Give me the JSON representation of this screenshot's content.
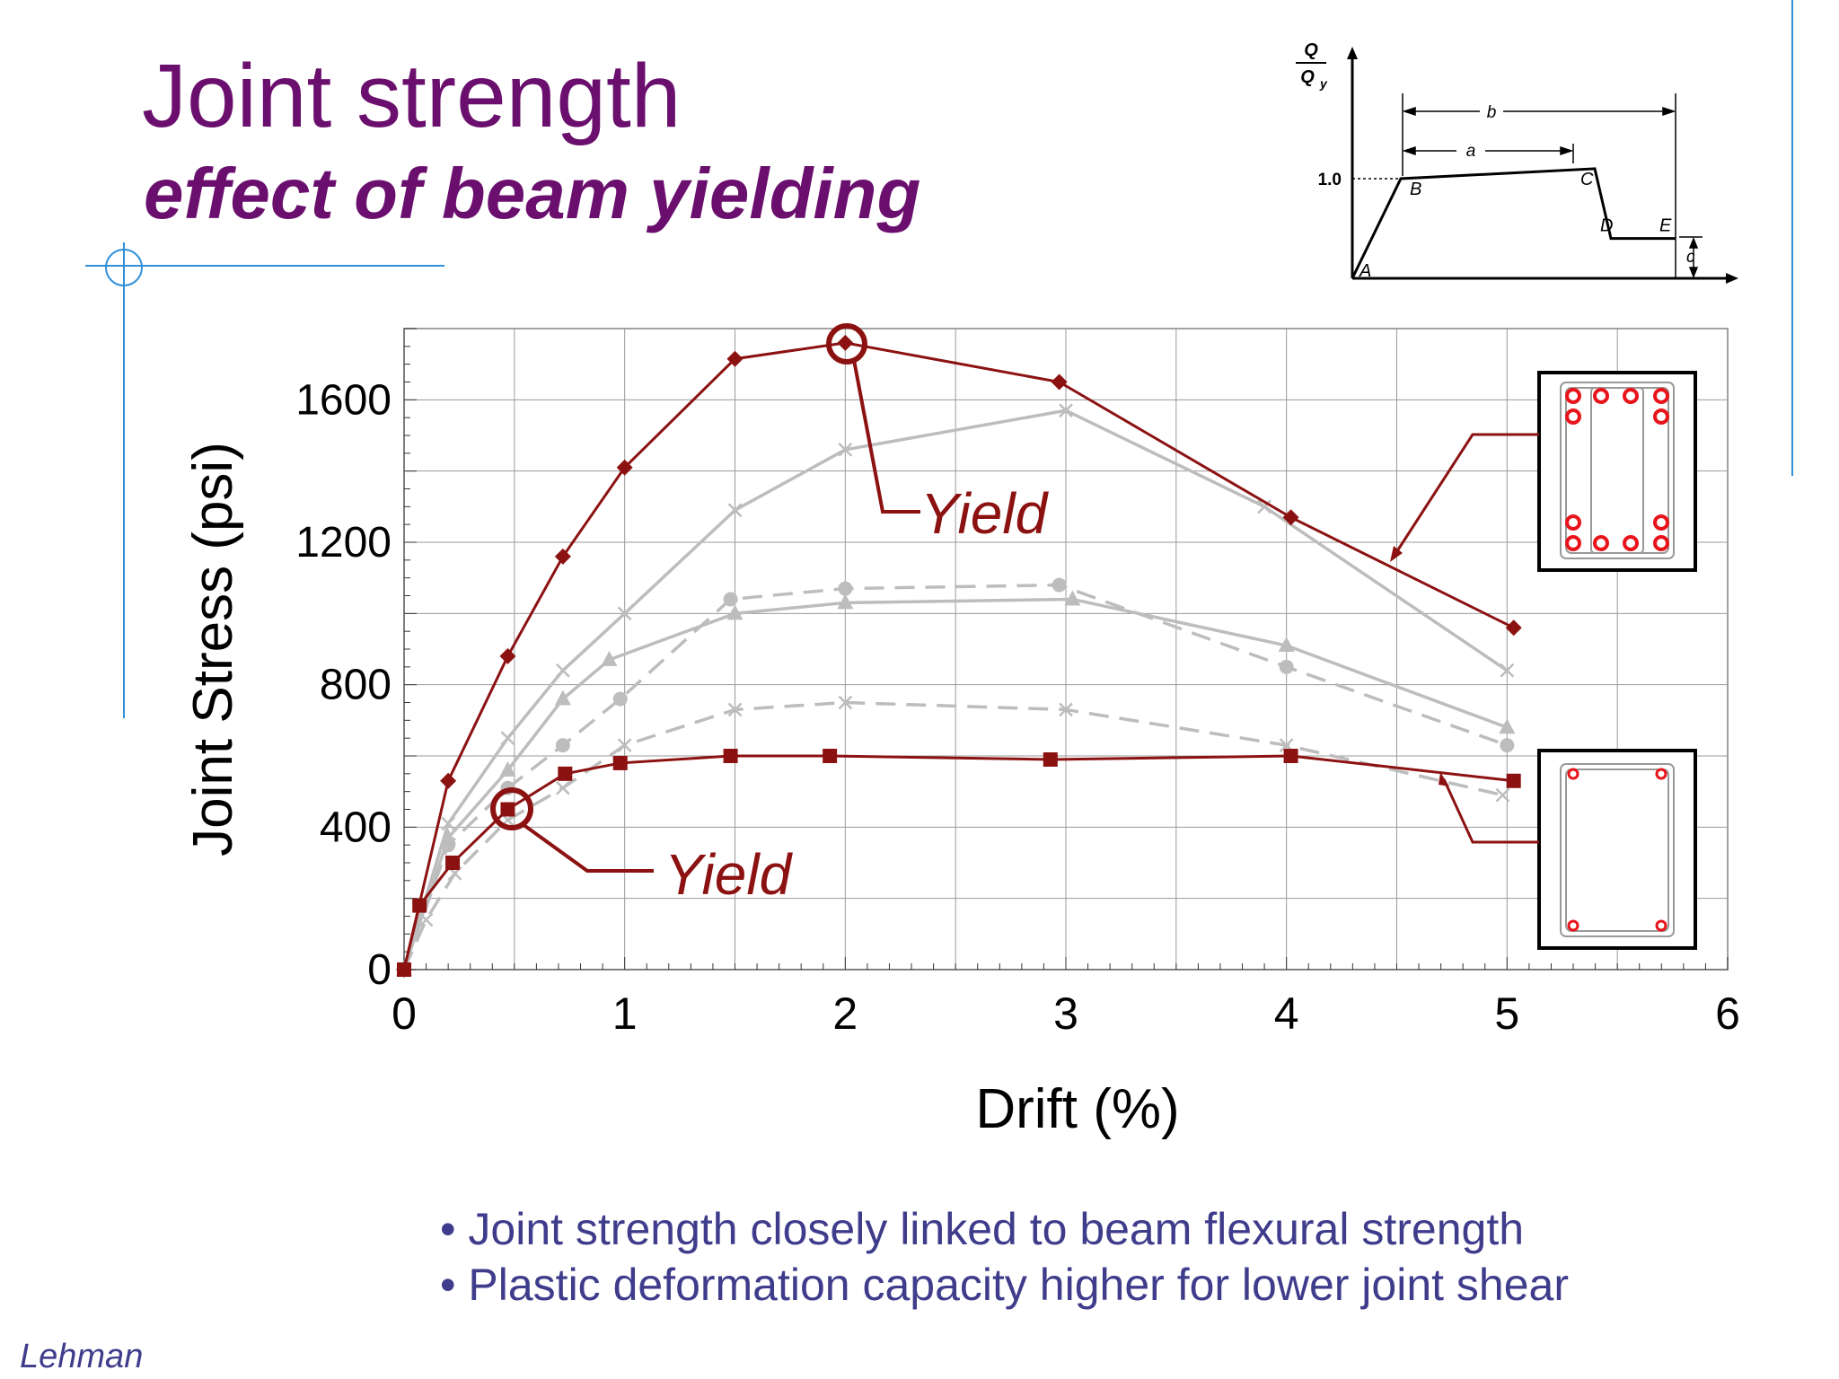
{
  "slide": {
    "title": "Joint strength",
    "subtitle": "effect of beam yielding",
    "bullets": [
      "Joint strength closely linked to beam flexural strength",
      "Plastic deformation capacity higher for lower joint shear"
    ],
    "author": "Lehman"
  },
  "colors": {
    "title": "#6b0f6e",
    "bullets": "#3f3c8c",
    "highlight": "#8c1212",
    "gray_series": "#bdbdbd",
    "rebar": "#e8141b",
    "decor_line": "#2f8fd8"
  },
  "chart_data": [
    {
      "type": "line",
      "xlabel": "Drift (%)",
      "ylabel": "Joint Stress (psi)",
      "xlim": [
        0,
        6
      ],
      "ylim": [
        0,
        1800
      ],
      "xticks": [
        0,
        1,
        2,
        3,
        4,
        5,
        6
      ],
      "yticks": [
        0,
        400,
        800,
        1200,
        1600
      ],
      "grid": true,
      "series": [
        {
          "marker": "diamond",
          "color": "#8c1212",
          "dash": false,
          "x": [
            0,
            0.2,
            0.47,
            0.72,
            1.0,
            1.5,
            2.0,
            2.97,
            4.02,
            5.03
          ],
          "y": [
            0,
            530,
            880,
            1160,
            1410,
            1715,
            1760,
            1650,
            1270,
            960
          ]
        },
        {
          "marker": "cross",
          "color": "#bdbdbd",
          "dash": false,
          "x": [
            0,
            0.2,
            0.47,
            0.72,
            1.0,
            1.5,
            2.0,
            3.0,
            3.9,
            5.0
          ],
          "y": [
            0,
            410,
            650,
            840,
            1000,
            1290,
            1460,
            1570,
            1300,
            840
          ]
        },
        {
          "marker": "triangle",
          "color": "#bdbdbd",
          "dash": false,
          "x": [
            0,
            0.2,
            0.47,
            0.72,
            0.93,
            1.5,
            2.0,
            3.03,
            4.0,
            5.0
          ],
          "y": [
            0,
            370,
            560,
            760,
            870,
            1000,
            1030,
            1040,
            910,
            680
          ]
        },
        {
          "marker": "circle",
          "color": "#bdbdbd",
          "dash": true,
          "x": [
            0,
            0.2,
            0.47,
            0.72,
            0.98,
            1.48,
            2.0,
            2.97,
            4.0,
            5.0
          ],
          "y": [
            0,
            350,
            510,
            630,
            760,
            1040,
            1070,
            1080,
            850,
            630
          ]
        },
        {
          "marker": "cross",
          "color": "#bdbdbd",
          "dash": true,
          "x": [
            0,
            0.1,
            0.23,
            0.47,
            0.72,
            1.0,
            1.5,
            2.0,
            3.0,
            4.0,
            4.98
          ],
          "y": [
            0,
            140,
            270,
            420,
            510,
            630,
            730,
            750,
            730,
            630,
            490
          ]
        },
        {
          "marker": "square",
          "color": "#8c1212",
          "dash": false,
          "x": [
            0,
            0.07,
            0.22,
            0.47,
            0.73,
            0.98,
            1.48,
            1.93,
            2.93,
            4.02,
            5.03
          ],
          "y": [
            0,
            180,
            300,
            450,
            550,
            580,
            600,
            600,
            590,
            600,
            530
          ]
        }
      ],
      "annotations": [
        {
          "text": "Yield",
          "x": 2.0,
          "y": 1760
        },
        {
          "text": "Yield",
          "x": 0.47,
          "y": 450
        }
      ]
    },
    {
      "type": "line",
      "ylabel_num": "Q",
      "ylabel_den": "Q",
      "ylabel_sub": "y",
      "yref_label": "1.0",
      "points": [
        {
          "label": "A",
          "x": 0,
          "y": 0
        },
        {
          "label": "B",
          "x": 1.5,
          "y": 1.0
        },
        {
          "label": "C",
          "x": 7.5,
          "y": 1.1
        },
        {
          "label": "D",
          "x": 8.0,
          "y": 0.4
        },
        {
          "label": "E",
          "x": 10.0,
          "y": 0.4
        }
      ],
      "dimensions": [
        "a",
        "b",
        "c"
      ]
    }
  ]
}
